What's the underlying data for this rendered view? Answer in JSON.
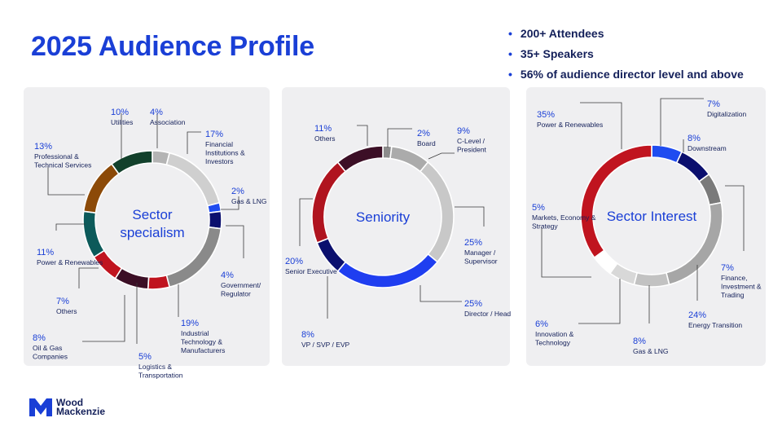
{
  "page": {
    "title": "2025 Audience Profile"
  },
  "highlights": [
    "200+ Attendees",
    "35+ Speakers",
    "56% of audience director level and above"
  ],
  "colors": {
    "brand_blue": "#1a3fd6",
    "navy": "#14205a",
    "panel_bg": "#efeff1"
  },
  "logo": {
    "line1": "Wood",
    "line2": "Mackenzie",
    "icon": "wood-mackenzie-logo-icon"
  },
  "chart_data": [
    {
      "type": "pie",
      "variant": "donut",
      "title": "Sector specialism",
      "center_lines": [
        "Sector",
        "specialism"
      ],
      "slices": [
        {
          "label": "Association",
          "value": 4,
          "pct_label": "4%",
          "color": "#b4b4b4"
        },
        {
          "label": "Financial Institutions & Investors",
          "value": 17,
          "pct_label": "17%",
          "color": "#cfcfcf"
        },
        {
          "label": "Gas & LNG",
          "value": 2,
          "pct_label": "2%",
          "color": "#1f4cf0"
        },
        {
          "label": "Government/ Regulator",
          "value": 4,
          "pct_label": "4%",
          "color": "#0b0f6e"
        },
        {
          "label": "Industrial Technology & Manufacturers",
          "value": 19,
          "pct_label": "19%",
          "color": "#8a8a8a"
        },
        {
          "label": "Logistics & Transportation",
          "value": 5,
          "pct_label": "5%",
          "color": "#c0141f"
        },
        {
          "label": "Oil & Gas Companies",
          "value": 8,
          "pct_label": "8%",
          "color": "#3c0f26"
        },
        {
          "label": "Others",
          "value": 7,
          "pct_label": "7%",
          "color": "#c0141f"
        },
        {
          "label": "Power & Renewables",
          "value": 11,
          "pct_label": "11%",
          "color": "#0c5a5a"
        },
        {
          "label": "Professional & Technical Services",
          "value": 13,
          "pct_label": "13%",
          "color": "#8c4a08"
        },
        {
          "label": "Utilities",
          "value": 10,
          "pct_label": "10%",
          "color": "#12402b"
        }
      ]
    },
    {
      "type": "pie",
      "variant": "donut",
      "title": "Seniority",
      "center_lines": [
        "Seniority"
      ],
      "slices": [
        {
          "label": "Board",
          "value": 2,
          "pct_label": "2%",
          "color": "#8c8c8c"
        },
        {
          "label": "C-Level / President",
          "value": 9,
          "pct_label": "9%",
          "color": "#ababab"
        },
        {
          "label": "Manager / Supervisor",
          "value": 25,
          "pct_label": "25%",
          "color": "#c8c8c8"
        },
        {
          "label": "Director / Head",
          "value": 25,
          "pct_label": "25%",
          "color": "#1f3ef0"
        },
        {
          "label": "VP / SVP / EVP",
          "value": 8,
          "pct_label": "8%",
          "color": "#0b0f6e"
        },
        {
          "label": "Senior Executive",
          "value": 20,
          "pct_label": "20%",
          "color": "#b0141f"
        },
        {
          "label": "Others",
          "value": 11,
          "pct_label": "11%",
          "color": "#3c0f26"
        }
      ]
    },
    {
      "type": "pie",
      "variant": "donut",
      "title": "Sector Interest",
      "center_lines": [
        "Sector Interest"
      ],
      "slices": [
        {
          "label": "Digitalization",
          "value": 7,
          "pct_label": "7%",
          "color": "#1f4cf0"
        },
        {
          "label": "Downstream",
          "value": 8,
          "pct_label": "8%",
          "color": "#0b0f6e"
        },
        {
          "label": "Finance, Investment & Trading",
          "value": 7,
          "pct_label": "7%",
          "color": "#7a7a7a"
        },
        {
          "label": "Energy Transition",
          "value": 24,
          "pct_label": "24%",
          "color": "#a6a6a6"
        },
        {
          "label": "Gas & LNG",
          "value": 8,
          "pct_label": "8%",
          "color": "#c2c2c2"
        },
        {
          "label": "Innovation & Technology",
          "value": 6,
          "pct_label": "6%",
          "color": "#d8d8d8"
        },
        {
          "label": "Markets, Economy & Strategy",
          "value": 5,
          "pct_label": "5%",
          "color": "#ffffff"
        },
        {
          "label": "Power & Renewables",
          "value": 35,
          "pct_label": "35%",
          "color": "#c0141f"
        }
      ]
    }
  ]
}
